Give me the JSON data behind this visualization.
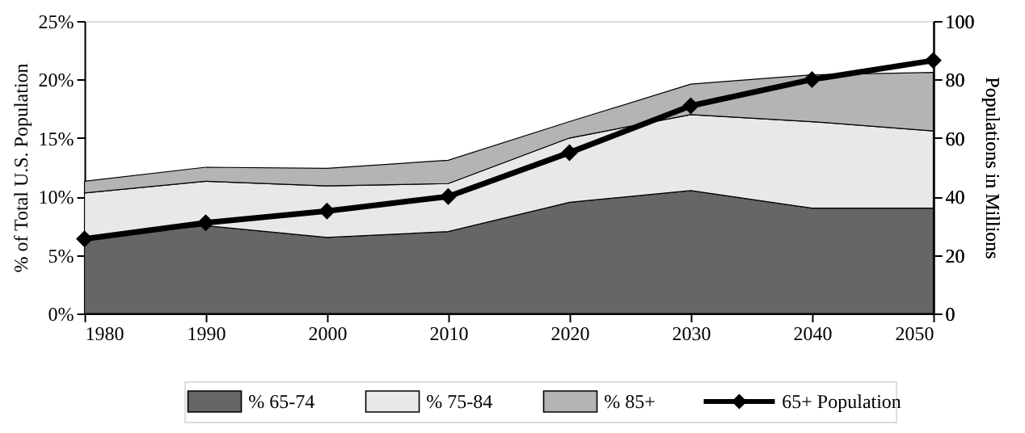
{
  "chart_data": {
    "type": "area",
    "stacked": true,
    "ylabel": "% of Total U.S. Population",
    "y2label": "Populations in Millions",
    "x": [
      1980,
      1990,
      2000,
      2010,
      2020,
      2030,
      2040,
      2050
    ],
    "xlim": [
      1980,
      2050
    ],
    "xticks": [
      1980,
      1990,
      2000,
      2010,
      2020,
      2030,
      2040,
      2050
    ],
    "ylim": [
      0,
      25
    ],
    "yticks": [
      {
        "value": 0,
        "label": "0%"
      },
      {
        "value": 5,
        "label": "5%"
      },
      {
        "value": 10,
        "label": "10%"
      },
      {
        "value": 15,
        "label": "15%"
      },
      {
        "value": 20,
        "label": "20%"
      },
      {
        "value": 25,
        "label": "25%"
      }
    ],
    "y2lim": [
      0,
      100
    ],
    "y2ticks": [
      0,
      20,
      40,
      60,
      80,
      100
    ],
    "legend": "bottom",
    "grid": false,
    "series": [
      {
        "name": "% 65-74",
        "color": "#666666",
        "values": [
          6.5,
          7.5,
          6.5,
          7.0,
          9.5,
          10.5,
          9.0,
          9.0
        ]
      },
      {
        "name": "% 75-84",
        "color": "#e8e8e8",
        "values": [
          3.8,
          3.8,
          4.4,
          4.1,
          5.5,
          6.5,
          7.4,
          6.6
        ]
      },
      {
        "name": "% 85+",
        "color": "#b4b4b4",
        "values": [
          1.0,
          1.2,
          1.5,
          2.0,
          1.4,
          2.6,
          4.0,
          5.0
        ]
      },
      {
        "name": "65+ Population",
        "color": "#000000",
        "type": "line",
        "axis": "y2",
        "marker": "diamond",
        "values": [
          25.5,
          31,
          35,
          40,
          55,
          71,
          80,
          86.5
        ]
      }
    ]
  }
}
